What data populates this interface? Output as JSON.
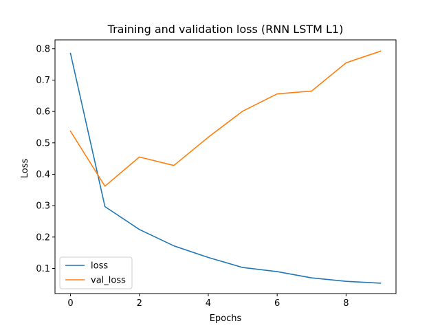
{
  "chart_data": {
    "type": "line",
    "title": "Training and validation loss (RNN LSTM L1)",
    "xlabel": "Epochs",
    "ylabel": "Loss",
    "x": [
      0,
      1,
      2,
      3,
      4,
      5,
      6,
      7,
      8,
      9
    ],
    "xlim": [
      -0.45,
      9.45
    ],
    "ylim": [
      0.02,
      0.828
    ],
    "xticks": [
      0,
      2,
      4,
      6,
      8
    ],
    "yticks": [
      0.1,
      0.2,
      0.3,
      0.4,
      0.5,
      0.6,
      0.7,
      0.8
    ],
    "xtick_labels": [
      "0",
      "2",
      "4",
      "6",
      "8"
    ],
    "ytick_labels": [
      "0.1",
      "0.2",
      "0.3",
      "0.4",
      "0.5",
      "0.6",
      "0.7",
      "0.8"
    ],
    "grid": false,
    "legend_position": "lower-left",
    "series": [
      {
        "name": "loss",
        "color": "#1f77b4",
        "values": [
          0.785,
          0.297,
          0.224,
          0.172,
          0.135,
          0.103,
          0.09,
          0.07,
          0.059,
          0.053
        ]
      },
      {
        "name": "val_loss",
        "color": "#ff7f0e",
        "values": [
          0.537,
          0.362,
          0.455,
          0.428,
          0.518,
          0.601,
          0.656,
          0.665,
          0.755,
          0.792
        ]
      }
    ]
  }
}
